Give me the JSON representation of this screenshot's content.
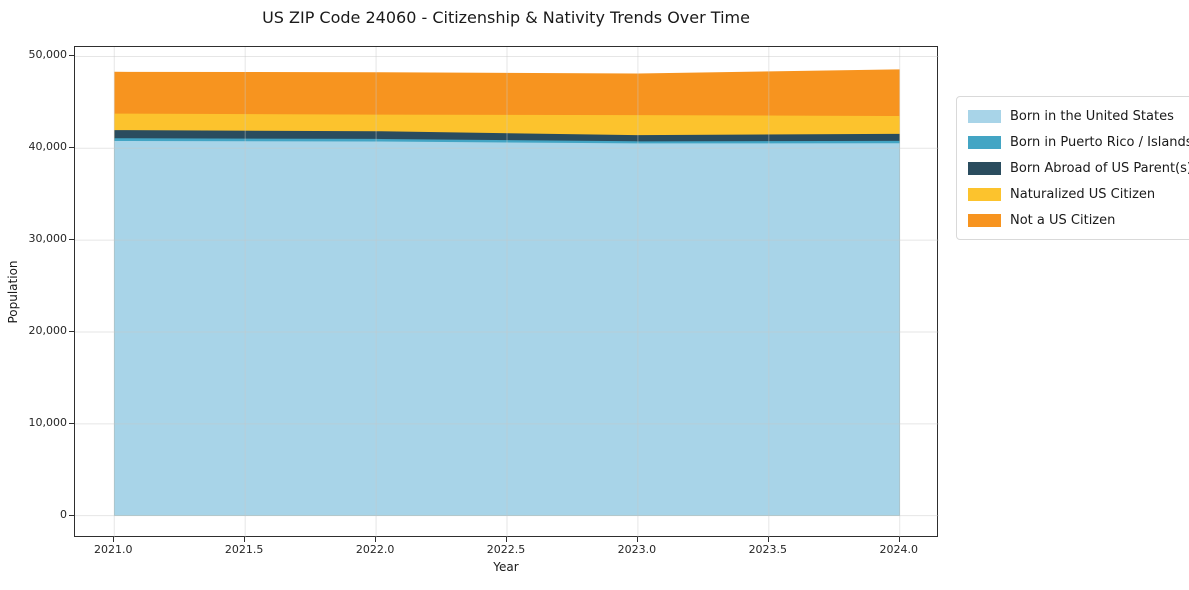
{
  "chart_data": {
    "type": "area",
    "stacked": true,
    "title": "US ZIP Code 24060 - Citizenship & Nativity Trends Over Time",
    "xlabel": "Year",
    "ylabel": "Population",
    "x": [
      2021,
      2022,
      2023,
      2024
    ],
    "series": [
      {
        "name": "Born in the United States",
        "color": "#A8D4E8",
        "values": [
          40800,
          40740,
          40530,
          40550
        ]
      },
      {
        "name": "Born in Puerto Rico / Islands",
        "color": "#43A5C4",
        "values": [
          300,
          280,
          230,
          260
        ]
      },
      {
        "name": "Born Abroad of US Parent(s)",
        "color": "#2A4C5E",
        "values": [
          880,
          840,
          670,
          760
        ]
      },
      {
        "name": "Naturalized US Citizen",
        "color": "#FCC32D",
        "values": [
          1800,
          1810,
          2180,
          1950
        ]
      },
      {
        "name": "Not a US Citizen",
        "color": "#F7941F",
        "values": [
          4550,
          4610,
          4540,
          5080
        ]
      }
    ],
    "stack_totals": [
      48330,
      48280,
      48150,
      48600
    ],
    "xlim": [
      2020.85,
      2024.15
    ],
    "ylim": [
      -2430,
      51030
    ],
    "xticks": [
      2021.0,
      2021.5,
      2022.0,
      2022.5,
      2023.0,
      2023.5,
      2024.0
    ],
    "xtick_labels": [
      "2021.0",
      "2021.5",
      "2022.0",
      "2022.5",
      "2023.0",
      "2023.5",
      "2024.0"
    ],
    "yticks": [
      0,
      10000,
      20000,
      30000,
      40000,
      50000
    ],
    "ytick_labels": [
      "0",
      "10,000",
      "20,000",
      "30,000",
      "40,000",
      "50,000"
    ],
    "grid": true,
    "grid_color": "#c8c8c8",
    "legend_position": "right-outside"
  }
}
